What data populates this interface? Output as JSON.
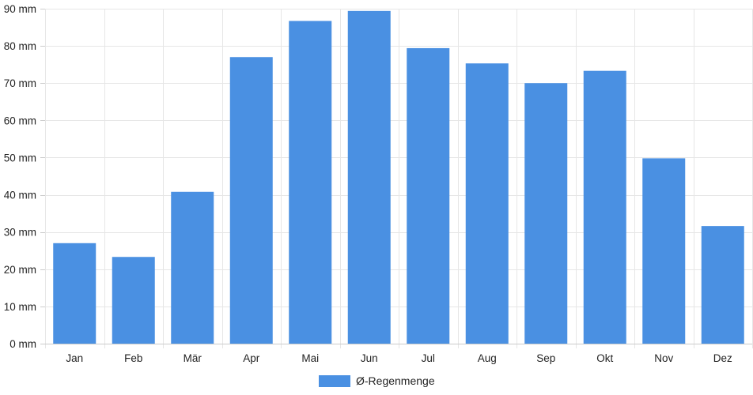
{
  "chart_data": {
    "type": "bar",
    "categories": [
      "Jan",
      "Feb",
      "Mär",
      "Apr",
      "Mai",
      "Jun",
      "Jul",
      "Aug",
      "Sep",
      "Okt",
      "Nov",
      "Dez"
    ],
    "series": [
      {
        "name": "Ø-Regenmenge",
        "values": [
          27,
          23.3,
          40.8,
          77,
          86.7,
          89.4,
          79.4,
          75.3,
          70,
          73.3,
          49.8,
          31.6
        ],
        "color": "#4a90e2"
      }
    ],
    "y_unit": "mm",
    "ylim": [
      0,
      90
    ],
    "y_ticks": [
      0,
      10,
      20,
      30,
      40,
      50,
      60,
      70,
      80,
      90
    ],
    "y_tick_labels": [
      "0 mm",
      "10 mm",
      "20 mm",
      "30 mm",
      "40 mm",
      "50 mm",
      "60 mm",
      "70 mm",
      "80 mm",
      "90 mm"
    ],
    "grid": true,
    "legend_position": "bottom-center"
  }
}
